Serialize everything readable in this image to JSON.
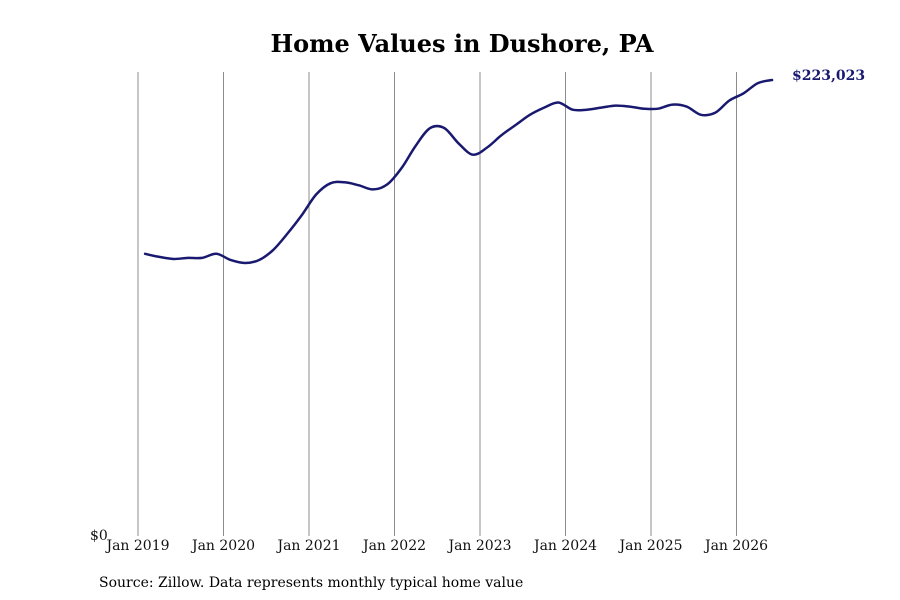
{
  "chart_data": {
    "type": "line",
    "title": "Home Values in Dushore, PA",
    "xlabel": "",
    "ylabel": "",
    "y_tick_label": "$0",
    "x_tick_labels": [
      "Jan 2019",
      "Jan 2020",
      "Jan 2021",
      "Jan 2022",
      "Jan 2023",
      "Jan 2024",
      "Jan 2025",
      "Jan 2026"
    ],
    "x_range": [
      "2019-01",
      "2026-07"
    ],
    "ylim": [
      0,
      223023
    ],
    "grid": "vertical",
    "line_color": "#191970",
    "end_value_label": "$223,023",
    "source": "Source: Zillow. Data represents monthly typical home value",
    "series": [
      {
        "x": [
          "2019-02",
          "2019-04",
          "2019-06",
          "2019-08",
          "2019-10",
          "2019-12",
          "2020-02",
          "2020-04",
          "2020-06",
          "2020-08",
          "2020-10",
          "2020-12",
          "2021-02",
          "2021-04",
          "2021-06",
          "2021-08",
          "2021-10",
          "2021-12",
          "2022-02",
          "2022-04",
          "2022-06",
          "2022-08",
          "2022-10",
          "2022-12",
          "2023-02",
          "2023-04",
          "2023-06",
          "2023-08",
          "2023-10",
          "2023-12",
          "2024-02",
          "2024-04",
          "2024-06",
          "2024-08",
          "2024-10",
          "2024-12",
          "2025-02",
          "2025-04",
          "2025-06",
          "2025-08",
          "2025-10",
          "2025-12",
          "2026-02",
          "2026-04",
          "2026-06"
        ],
        "values": [
          138000,
          136500,
          135500,
          136000,
          136000,
          138000,
          135000,
          133500,
          135000,
          140000,
          148000,
          157000,
          167000,
          172500,
          173000,
          171500,
          169500,
          172000,
          180000,
          191000,
          199500,
          199500,
          192000,
          186500,
          190000,
          196000,
          201000,
          206000,
          209500,
          212000,
          208500,
          208500,
          209500,
          210500,
          210000,
          209000,
          209000,
          211000,
          210000,
          206000,
          207000,
          213000,
          216500,
          221500,
          223023
        ]
      }
    ]
  }
}
